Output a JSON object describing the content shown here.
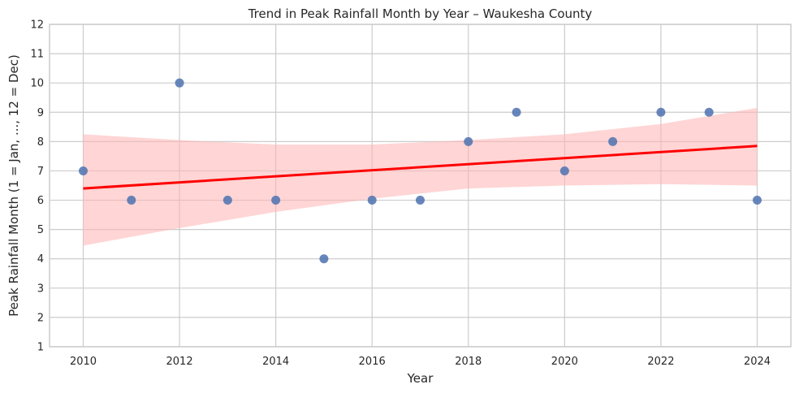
{
  "chart_data": {
    "type": "scatter",
    "title": "Trend in Peak Rainfall Month by Year – Waukesha County",
    "xlabel": "Year",
    "ylabel": "Peak Rainfall Month (1 = Jan, ..., 12 = Dec)",
    "xlim": [
      2009.3,
      2024.7
    ],
    "ylim": [
      1,
      12
    ],
    "xticks": [
      2010,
      2012,
      2014,
      2016,
      2018,
      2020,
      2022,
      2024
    ],
    "yticks": [
      1,
      2,
      3,
      4,
      5,
      6,
      7,
      8,
      9,
      10,
      11,
      12
    ],
    "grid": true,
    "series": [
      {
        "x": [
          2010,
          2011,
          2012,
          2013,
          2014,
          2015,
          2016,
          2017,
          2018,
          2019,
          2020,
          2021,
          2022,
          2023,
          2024
        ],
        "y": [
          7,
          6,
          10,
          6,
          6,
          4,
          6,
          6,
          8,
          9,
          7,
          8,
          9,
          9,
          6
        ],
        "color": "#4c72b0"
      }
    ],
    "regression": {
      "x_start": 2010,
      "y_start": 6.4,
      "x_end": 2024,
      "y_end": 7.85,
      "color": "#ff0000",
      "band_color": "#ffb3b3",
      "band": [
        {
          "x": 2010,
          "lo": 4.45,
          "hi": 8.25
        },
        {
          "x": 2012,
          "lo": 5.05,
          "hi": 8.05
        },
        {
          "x": 2014,
          "lo": 5.6,
          "hi": 7.9
        },
        {
          "x": 2016,
          "lo": 6.05,
          "hi": 7.9
        },
        {
          "x": 2018,
          "lo": 6.4,
          "hi": 8.05
        },
        {
          "x": 2020,
          "lo": 6.5,
          "hi": 8.25
        },
        {
          "x": 2022,
          "lo": 6.55,
          "hi": 8.6
        },
        {
          "x": 2024,
          "lo": 6.5,
          "hi": 9.15
        }
      ]
    }
  }
}
